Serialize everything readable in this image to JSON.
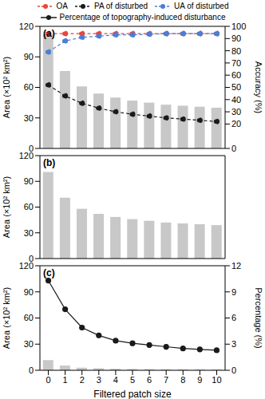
{
  "chart_data": [
    {
      "type": "bar",
      "title": "(a)",
      "categories": [
        0,
        1,
        2,
        3,
        4,
        5,
        6,
        7,
        8,
        9,
        10
      ],
      "values": [
        112,
        76,
        61,
        54,
        50,
        47,
        45,
        43,
        42,
        41,
        40
      ],
      "color": "#c8c8c8",
      "ylabel": "Area (×10² km²)",
      "ylim": [
        0,
        120
      ],
      "yticks": [
        0,
        30,
        60,
        90,
        120
      ],
      "y2label": "Accuracy (%)",
      "y2lim": [
        0,
        100
      ],
      "y2ticks": [
        0,
        20,
        30,
        40,
        50,
        60,
        70,
        80,
        90,
        100
      ],
      "tick_labels": "y",
      "legend": "upper center",
      "series": [
        {
          "name": "OA",
          "type": "line",
          "axis": "y2",
          "color": "#e8473f",
          "line_style": "dashed",
          "marker": "circle",
          "values": [
            94,
            94,
            94,
            94,
            94,
            94,
            94,
            94,
            94,
            94,
            94
          ]
        },
        {
          "name": "PA of disturbed",
          "type": "line",
          "axis": "y2",
          "color": "#1a1a1a",
          "line_style": "dashed",
          "marker": "circle",
          "values": [
            52,
            43,
            37,
            33,
            30,
            28,
            26.5,
            25,
            24,
            23,
            22
          ]
        },
        {
          "name": "UA of disturbed",
          "type": "line",
          "axis": "y2",
          "color": "#4a7fd4",
          "line_style": "dashed",
          "marker": "circle",
          "values": [
            79,
            88,
            91,
            92,
            93,
            93,
            93.5,
            94,
            94,
            94,
            94
          ]
        }
      ]
    },
    {
      "type": "bar",
      "title": "(b)",
      "categories": [
        0,
        1,
        2,
        3,
        4,
        5,
        6,
        7,
        8,
        9,
        10
      ],
      "values": [
        101,
        71,
        58,
        52,
        48.5,
        46,
        44,
        42,
        41,
        40,
        39
      ],
      "color": "#c8c8c8",
      "ylabel": "Area (×10² km²)",
      "ylim": [
        0,
        120
      ],
      "yticks": [
        0,
        30,
        60,
        90,
        120
      ],
      "tick_labels": "y",
      "series": []
    },
    {
      "type": "bar",
      "title": "(c)",
      "categories": [
        0,
        1,
        2,
        3,
        4,
        5,
        6,
        7,
        8,
        9,
        10
      ],
      "values": [
        11.6,
        5.4,
        3.0,
        2.2,
        1.7,
        1.4,
        1.2,
        1.1,
        1.0,
        0.9,
        0.8
      ],
      "color": "#c8c8c8",
      "xlabel": "Filtered patch size",
      "ylabel": "Area (×10² km²)",
      "ylim": [
        0,
        120
      ],
      "yticks": [
        0,
        30,
        60,
        90,
        120
      ],
      "y2label": "Percentage (%)",
      "y2lim": [
        0,
        12
      ],
      "y2ticks": [
        0,
        3,
        6,
        9,
        12
      ],
      "series": [
        {
          "name": "Percentage of topography-induced disturbance",
          "type": "line",
          "axis": "y2",
          "color": "#1a1a1a",
          "line_style": "solid",
          "marker": "circle",
          "values": [
            10.3,
            7.0,
            4.9,
            4.0,
            3.4,
            3.1,
            2.9,
            2.7,
            2.5,
            2.4,
            2.3
          ]
        }
      ]
    }
  ]
}
